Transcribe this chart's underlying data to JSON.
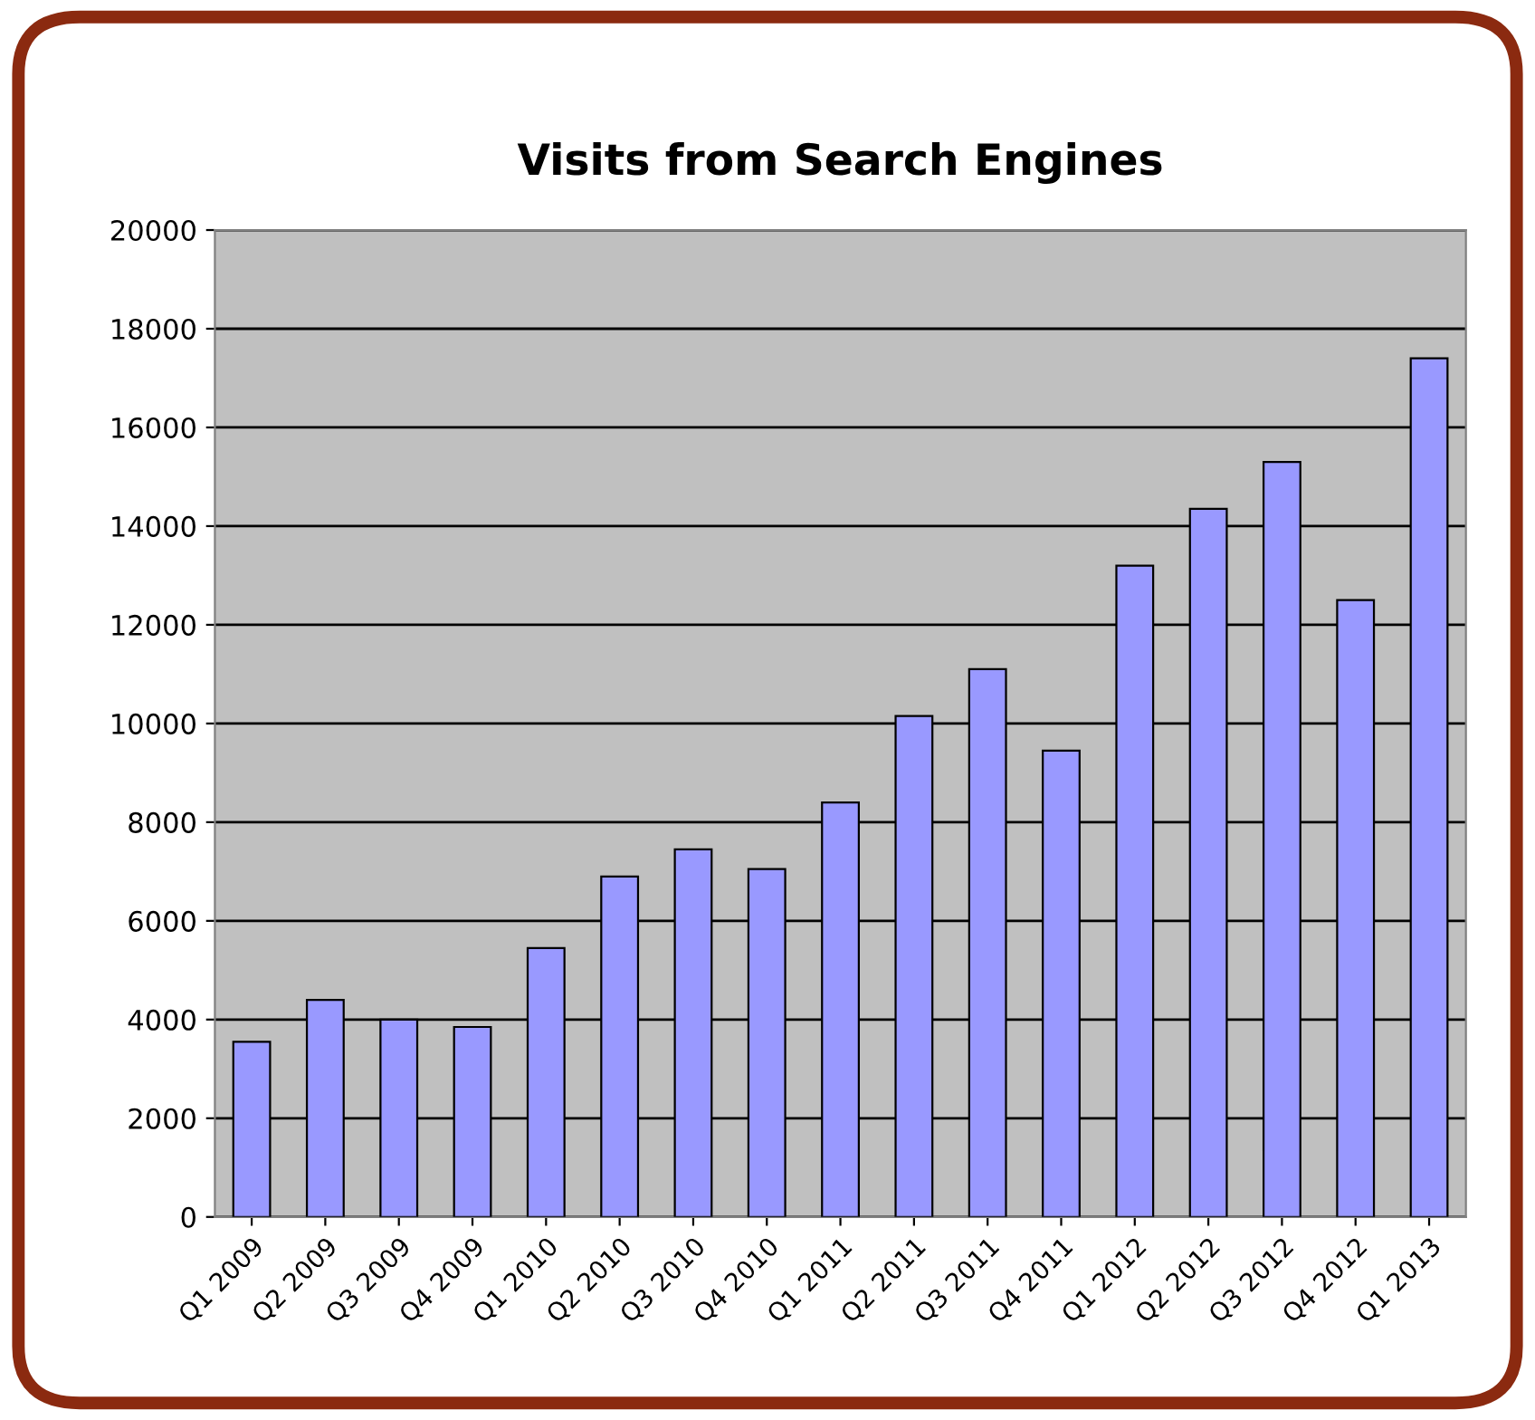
{
  "chart_data": {
    "type": "bar",
    "title": "Visits from Search Engines",
    "categories": [
      "Q1 2009",
      "Q2 2009",
      "Q3 2009",
      "Q4 2009",
      "Q1 2010",
      "Q2 2010",
      "Q3 2010",
      "Q4 2010",
      "Q1 2011",
      "Q2 2011",
      "Q3 2011",
      "Q4 2011",
      "Q1 2012",
      "Q2 2012",
      "Q3 2012",
      "Q4 2012",
      "Q1 2013"
    ],
    "values": [
      3550,
      4400,
      4000,
      3850,
      5450,
      6900,
      7450,
      7050,
      8400,
      10150,
      11100,
      9450,
      13200,
      14350,
      15300,
      12500,
      17400
    ],
    "color": "#9999ff",
    "ylim": [
      0,
      20000
    ],
    "yticks": [
      0,
      2000,
      4000,
      6000,
      8000,
      10000,
      12000,
      14000,
      16000,
      18000,
      20000
    ],
    "grid": "y",
    "legend": false
  }
}
